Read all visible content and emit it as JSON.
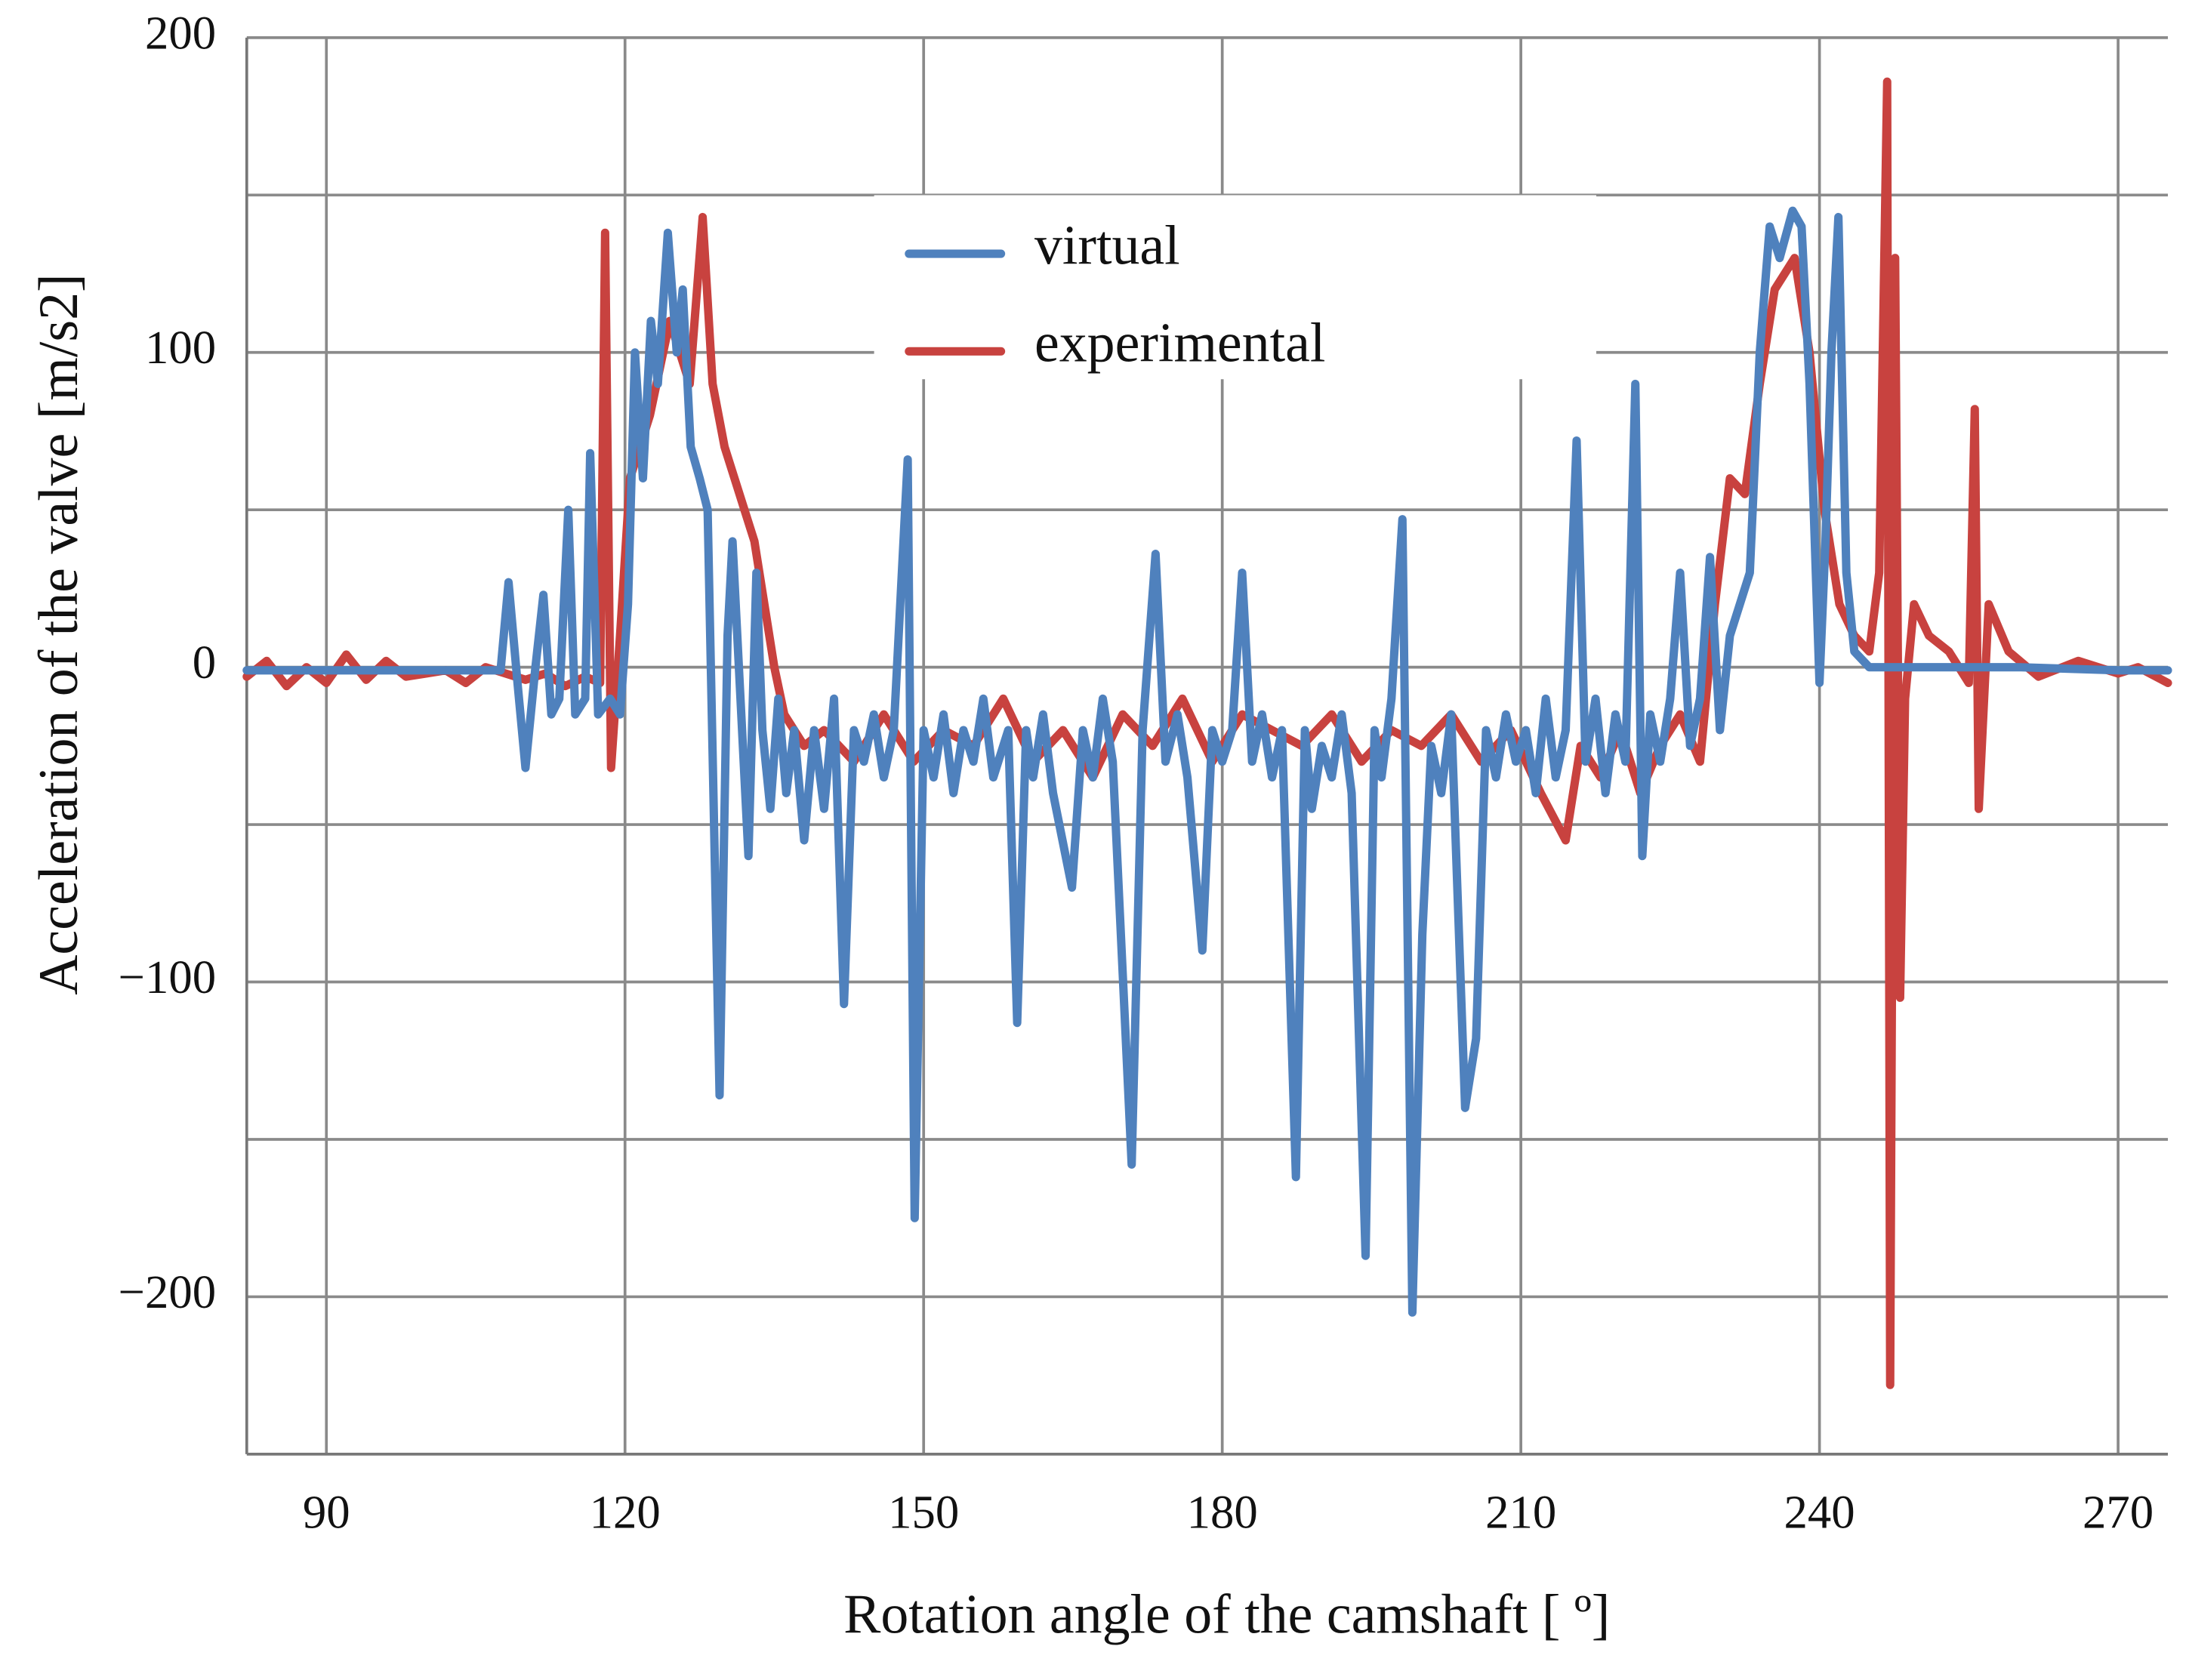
{
  "chart_data": {
    "type": "line",
    "xlabel": "Rotation angle of the camshaft [ º]",
    "ylabel": "Acceleration of the valve [m/s2]",
    "xlim": [
      82,
      275
    ],
    "ylim": [
      -250,
      200
    ],
    "xticks": [
      90,
      120,
      150,
      180,
      210,
      240,
      270
    ],
    "yticks": [
      {
        "value": -200,
        "label": "−200"
      },
      {
        "value": -100,
        "label": "−100"
      },
      0,
      100,
      200
    ],
    "yminor_grid": [
      -150,
      -50,
      50,
      150
    ],
    "grid": true,
    "legend": "upper center",
    "series": [
      {
        "name": "virtual",
        "color": "#4f81bd",
        "x": [
          82,
          90,
          100,
          107.5,
          108.3,
          109.2,
          110,
          111,
          111.8,
          112.6,
          113.4,
          114.3,
          115,
          116,
          116.5,
          117.3,
          118.5,
          119.5,
          120.3,
          121,
          121.8,
          122.6,
          123.3,
          124.3,
          125.2,
          125.8,
          126.6,
          127.5,
          128.3,
          129.5,
          130.3,
          130.8,
          131.6,
          132.4,
          133.2,
          133.8,
          134.6,
          135.4,
          136.2,
          137,
          138,
          139,
          140,
          141,
          142,
          143,
          144,
          145,
          146,
          147,
          148.4,
          149.1,
          150,
          151,
          152,
          153,
          154,
          155,
          156,
          157,
          158.5,
          159.4,
          160.3,
          161,
          162,
          163,
          164.9,
          166,
          167,
          168,
          169,
          170.9,
          172,
          173.3,
          174.3,
          175.5,
          176.5,
          178,
          179,
          180,
          181,
          182,
          183,
          184,
          185,
          186,
          187.4,
          188.3,
          189,
          190,
          191,
          192,
          193,
          194.4,
          195.3,
          196,
          197,
          198.1,
          199.1,
          200.1,
          201,
          202,
          203,
          204.4,
          205.5,
          206.5,
          207.5,
          208.5,
          209.5,
          210.5,
          211.5,
          212.5,
          213.5,
          214.5,
          215.6,
          216.5,
          217.5,
          218.5,
          219.5,
          220.5,
          221.5,
          222.2,
          223,
          224,
          225,
          226,
          227,
          228,
          229,
          230,
          231,
          232,
          233,
          234,
          235,
          236,
          237.3,
          238.2,
          239,
          240,
          240.6,
          241.2,
          241.9,
          242.7,
          243.5,
          245,
          250,
          260,
          270,
          275
        ],
        "values": [
          -1,
          -1,
          -1,
          -1,
          27,
          -5,
          -32,
          0,
          23,
          -15,
          -10,
          50,
          -15,
          -10,
          68,
          -15,
          -10,
          -15,
          20,
          100,
          60,
          110,
          90,
          138,
          100,
          120,
          70,
          60,
          50,
          -136,
          10,
          40,
          -10,
          -60,
          30,
          -20,
          -45,
          -10,
          -40,
          -20,
          -55,
          -20,
          -45,
          -10,
          -107,
          -20,
          -30,
          -15,
          -35,
          -20,
          66,
          -175,
          -20,
          -35,
          -15,
          -40,
          -20,
          -30,
          -10,
          -35,
          -20,
          -113,
          -20,
          -35,
          -15,
          -40,
          -70,
          -20,
          -35,
          -10,
          -30,
          -158,
          -20,
          36,
          -30,
          -15,
          -35,
          -90,
          -20,
          -30,
          -20,
          30,
          -30,
          -15,
          -35,
          -20,
          -162,
          -20,
          -45,
          -25,
          -35,
          -15,
          -40,
          -187,
          -20,
          -35,
          -10,
          47,
          -205,
          -85,
          -25,
          -40,
          -15,
          -140,
          -118,
          -20,
          -35,
          -15,
          -30,
          -20,
          -40,
          -10,
          -35,
          -20,
          72,
          -30,
          -10,
          -40,
          -15,
          -30,
          90,
          -60,
          -15,
          -30,
          -10,
          30,
          -25,
          -10,
          35,
          -20,
          10,
          20,
          30,
          100,
          140,
          130,
          145,
          140,
          90,
          -5,
          40,
          100,
          143,
          30,
          5,
          0,
          0,
          0,
          -1,
          -1
        ]
      },
      {
        "name": "experimental",
        "color": "#c8423f",
        "x": [
          82,
          84,
          86,
          88,
          90,
          92,
          94,
          96,
          98,
          100,
          102,
          104,
          106,
          108,
          110,
          112,
          114,
          116,
          117.5,
          118,
          118.6,
          119.5,
          120.5,
          121.5,
          122.5,
          123.5,
          124.5,
          125.5,
          126.5,
          127.8,
          128.8,
          130,
          131,
          132,
          133,
          134,
          135,
          136,
          138,
          140,
          143,
          146,
          149,
          152,
          155,
          158,
          161,
          164,
          167,
          170,
          173,
          176,
          179,
          182,
          185,
          188,
          191,
          194,
          197,
          200,
          203,
          206,
          209,
          212,
          214.5,
          216,
          218,
          220,
          222,
          224,
          226,
          228,
          229.5,
          231,
          232.5,
          234,
          235.5,
          237.5,
          239,
          240.5,
          242,
          243.5,
          245,
          246,
          246.8,
          247.1,
          247.6,
          248.1,
          248.6,
          249.5,
          251,
          253,
          255,
          255.6,
          256,
          257,
          259,
          262,
          266,
          270,
          272,
          275
        ],
        "values": [
          -3,
          2,
          -6,
          0,
          -5,
          4,
          -4,
          2,
          -3,
          -2,
          -1,
          -5,
          0,
          -2,
          -4,
          -2,
          -6,
          -3,
          -5,
          138,
          -32,
          10,
          60,
          70,
          80,
          95,
          110,
          100,
          90,
          143,
          90,
          70,
          60,
          50,
          40,
          20,
          0,
          -15,
          -25,
          -20,
          -30,
          -15,
          -30,
          -20,
          -25,
          -10,
          -30,
          -20,
          -35,
          -15,
          -25,
          -10,
          -30,
          -15,
          -20,
          -25,
          -15,
          -30,
          -20,
          -25,
          -15,
          -30,
          -20,
          -40,
          -55,
          -25,
          -35,
          -20,
          -40,
          -25,
          -15,
          -30,
          20,
          60,
          55,
          90,
          120,
          130,
          100,
          50,
          20,
          10,
          5,
          30,
          186,
          -228,
          130,
          -105,
          -10,
          20,
          10,
          5,
          -5,
          82,
          -45,
          20,
          5,
          -3,
          2,
          -2,
          0,
          -5
        ]
      }
    ]
  }
}
